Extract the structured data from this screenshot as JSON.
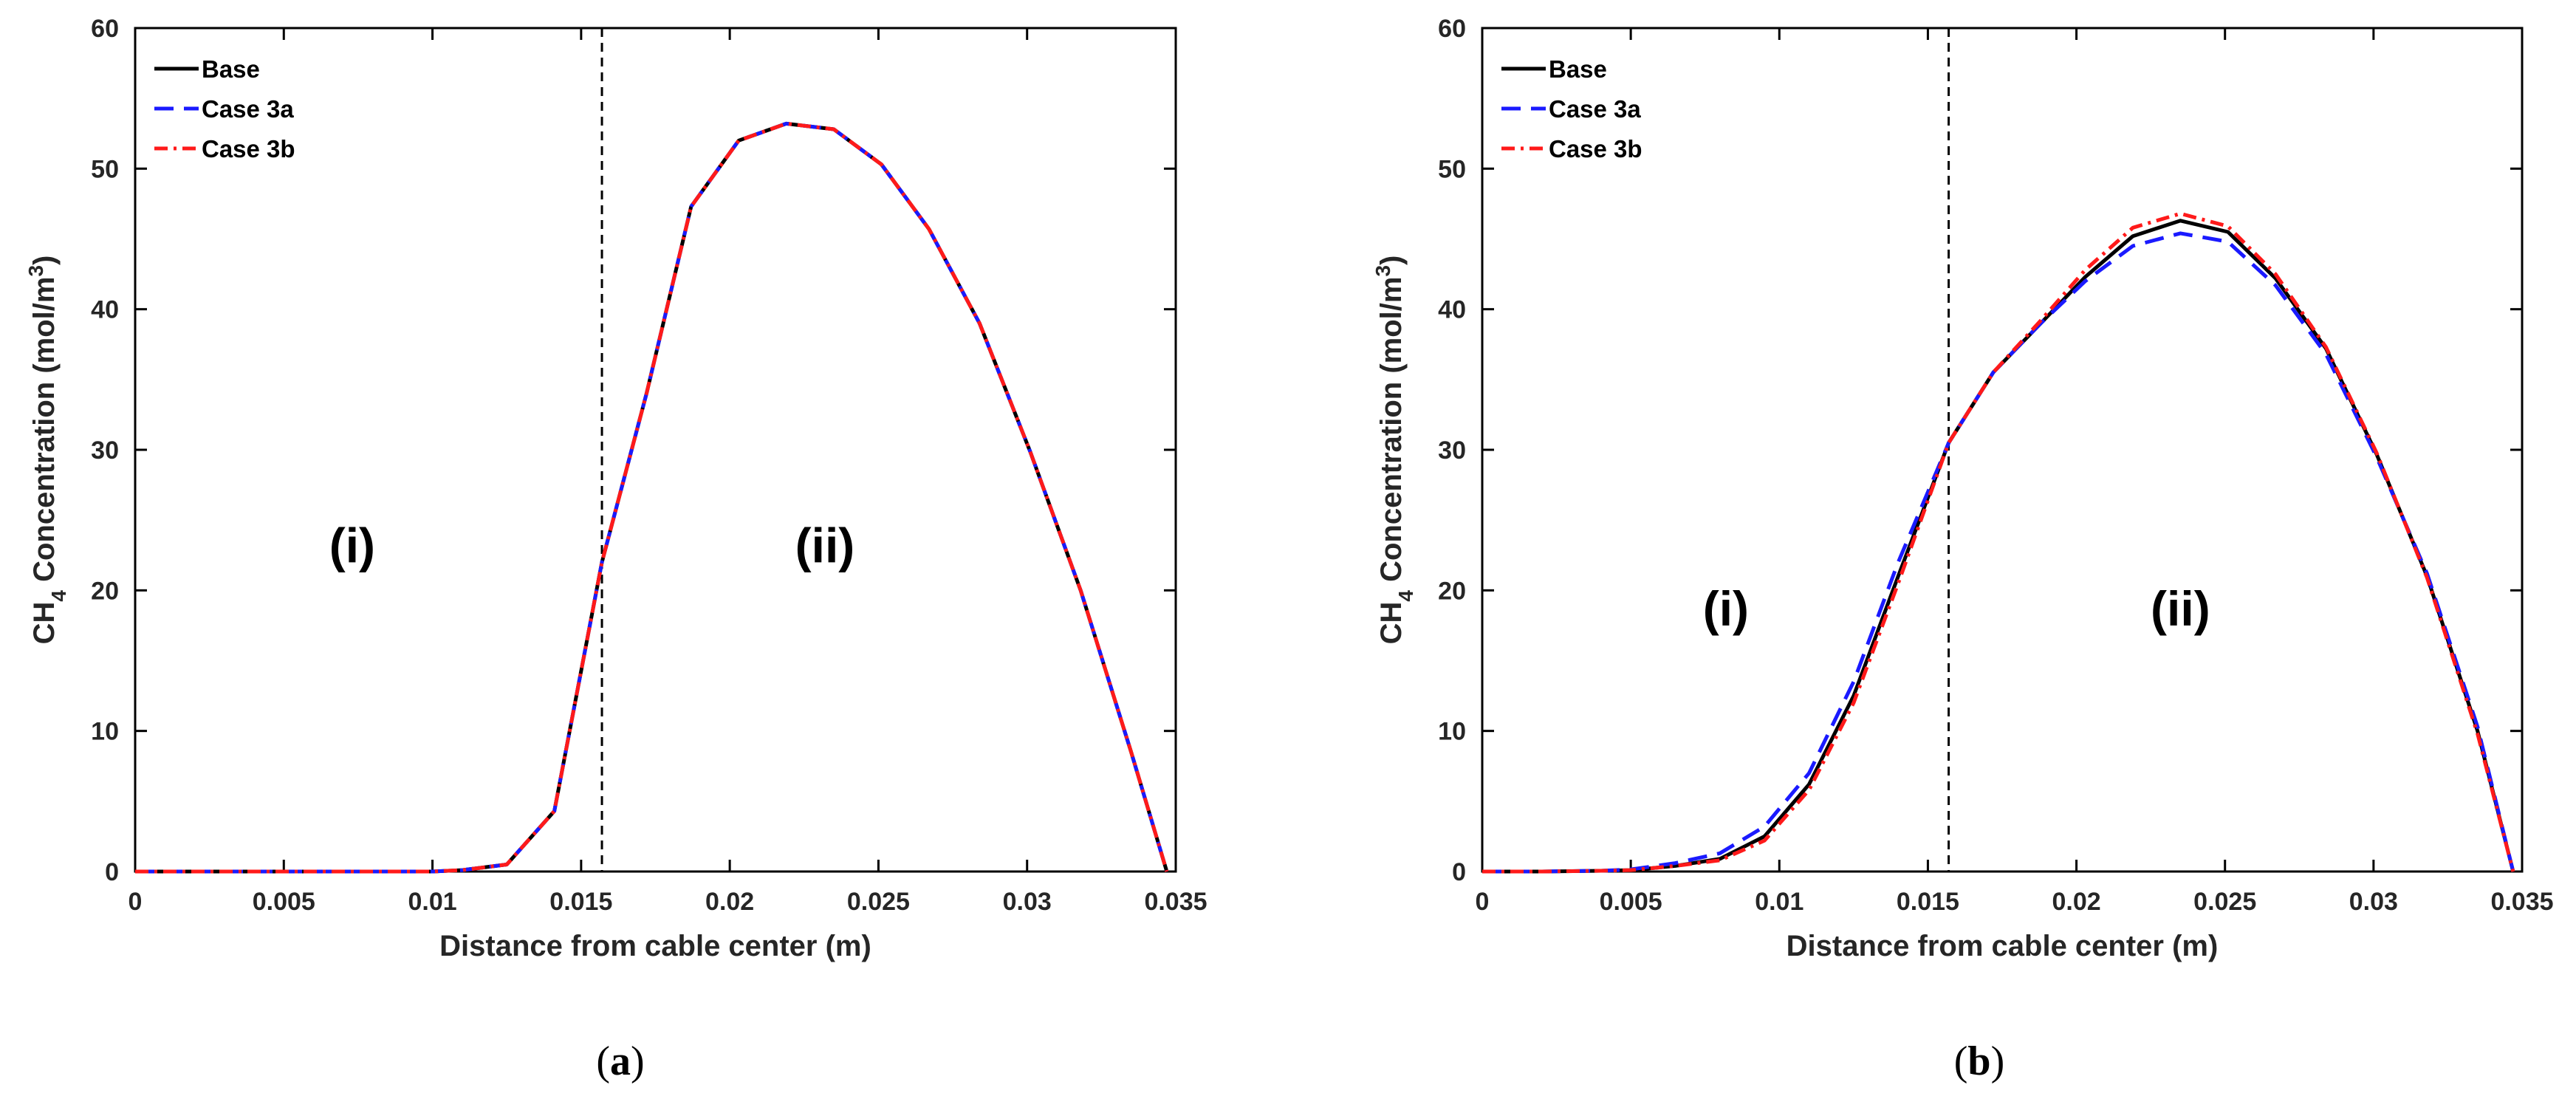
{
  "chart_data": [
    {
      "type": "line",
      "panel_label": "(a)",
      "xlabel": "Distance from cable center (m)",
      "ylabel": "CH4 Concentration (mol/m3)",
      "xlim": [
        0,
        0.035
      ],
      "ylim": [
        0,
        60
      ],
      "xticks": [
        "0",
        "0.005",
        "0.01",
        "0.015",
        "0.02",
        "0.025",
        "0.03",
        "0.035"
      ],
      "yticks": [
        "0",
        "10",
        "20",
        "30",
        "40",
        "50",
        "60"
      ],
      "divider_x": 0.0157,
      "regions": [
        {
          "label": "(i)",
          "x": 0.0073,
          "y": 22
        },
        {
          "label": "(ii)",
          "x": 0.0232,
          "y": 22
        }
      ],
      "legend_position": "top-left",
      "x": [
        0,
        0.0005,
        0.001,
        0.002,
        0.003,
        0.004,
        0.005,
        0.006,
        0.007,
        0.008,
        0.009,
        0.01,
        0.011,
        0.0125,
        0.0141,
        0.0157,
        0.0172,
        0.0187,
        0.0203,
        0.0219,
        0.0235,
        0.0251,
        0.0267,
        0.0284,
        0.0301,
        0.0318,
        0.0335,
        0.0347
      ],
      "series": [
        {
          "name": "Base",
          "color": "#000000",
          "dash": "solid",
          "values": [
            0,
            0,
            0,
            0,
            0,
            0,
            0,
            0,
            0,
            0,
            0,
            0,
            0.1,
            0.5,
            4.3,
            22.0,
            34.0,
            47.3,
            52.0,
            53.2,
            52.8,
            50.3,
            45.7,
            39.0,
            29.9,
            20.0,
            8.5,
            0
          ]
        },
        {
          "name": "Case 3a",
          "color": "#1a1aff",
          "dash": "dashed",
          "values": [
            0,
            0,
            0,
            0,
            0,
            0,
            0,
            0,
            0,
            0,
            0,
            0,
            0.1,
            0.5,
            4.3,
            22.0,
            34.0,
            47.3,
            52.0,
            53.2,
            52.8,
            50.3,
            45.7,
            39.0,
            29.9,
            20.0,
            8.5,
            0
          ]
        },
        {
          "name": "Case 3b",
          "color": "#ff1a1a",
          "dash": "dashdot",
          "values": [
            0,
            0,
            0,
            0,
            0,
            0,
            0,
            0,
            0,
            0,
            0,
            0,
            0.1,
            0.5,
            4.3,
            22.0,
            34.0,
            47.3,
            52.0,
            53.2,
            52.8,
            50.3,
            45.7,
            39.0,
            29.9,
            20.0,
            8.5,
            0
          ]
        }
      ]
    },
    {
      "type": "line",
      "panel_label": "(b)",
      "xlabel": "Distance from cable center (m)",
      "ylabel": "CH4 Concentration (mol/m3)",
      "xlim": [
        0,
        0.035
      ],
      "ylim": [
        0,
        60
      ],
      "xticks": [
        "0",
        "0.005",
        "0.01",
        "0.015",
        "0.02",
        "0.025",
        "0.03",
        "0.035"
      ],
      "yticks": [
        "0",
        "10",
        "20",
        "30",
        "40",
        "50",
        "60"
      ],
      "divider_x": 0.0157,
      "regions": [
        {
          "label": "(i)",
          "x": 0.0082,
          "y": 17.5
        },
        {
          "label": "(ii)",
          "x": 0.0235,
          "y": 17.5
        }
      ],
      "legend_position": "top-left",
      "x": [
        0,
        0.002,
        0.004,
        0.005,
        0.0055,
        0.0065,
        0.008,
        0.0095,
        0.011,
        0.0125,
        0.014,
        0.0157,
        0.0172,
        0.0188,
        0.0203,
        0.0219,
        0.0235,
        0.0251,
        0.0267,
        0.0284,
        0.0301,
        0.0318,
        0.0335,
        0.0347
      ],
      "series": [
        {
          "name": "Base",
          "color": "#000000",
          "dash": "solid",
          "values": [
            0,
            0,
            0.05,
            0.1,
            0.2,
            0.4,
            0.9,
            2.5,
            6.2,
            12.5,
            21.0,
            30.5,
            35.5,
            39.0,
            42.3,
            45.2,
            46.3,
            45.5,
            42.2,
            37.2,
            29.7,
            21.0,
            10.0,
            0
          ]
        },
        {
          "name": "Case 3a",
          "color": "#1a1aff",
          "dash": "dashed",
          "values": [
            0,
            0,
            0.05,
            0.15,
            0.3,
            0.6,
            1.3,
            3.2,
            7.0,
            13.5,
            22.0,
            30.5,
            35.5,
            39.0,
            42.0,
            44.5,
            45.4,
            44.8,
            41.7,
            36.8,
            29.5,
            21.2,
            10.3,
            0
          ]
        },
        {
          "name": "Case 3b",
          "color": "#ff1a1a",
          "dash": "dashdot",
          "values": [
            0,
            0,
            0.05,
            0.1,
            0.2,
            0.4,
            0.8,
            2.2,
            5.8,
            12.0,
            20.5,
            30.5,
            35.5,
            39.2,
            42.8,
            45.8,
            46.8,
            45.9,
            42.5,
            37.3,
            29.8,
            20.9,
            9.8,
            0
          ]
        }
      ]
    }
  ]
}
